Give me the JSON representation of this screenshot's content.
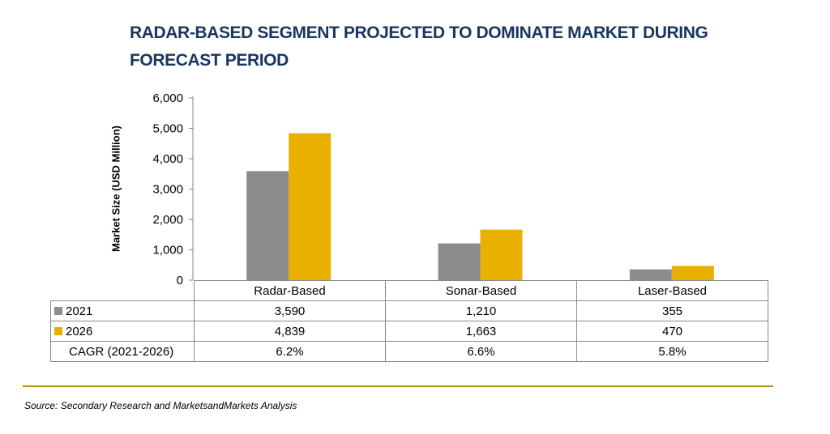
{
  "chart_data": {
    "type": "bar",
    "title": "RADAR-BASED SEGMENT PROJECTED TO DOMINATE MARKET DURING FORECAST PERIOD",
    "ylabel": "Market Size (USD Million)",
    "xlabel": "",
    "ylim": [
      0,
      6000
    ],
    "yticks": [
      0,
      1000,
      2000,
      3000,
      4000,
      5000,
      6000
    ],
    "ytick_labels": [
      "0",
      "1,000",
      "2,000",
      "3,000",
      "4,000",
      "5,000",
      "6,000"
    ],
    "grid": false,
    "categories": [
      "Radar-Based",
      "Sonar-Based",
      "Laser-Based"
    ],
    "series": [
      {
        "name": "2021",
        "values": [
          3590,
          1210,
          355
        ],
        "labels": [
          "3,590",
          "1,210",
          "355"
        ],
        "color": "#8c8c8c"
      },
      {
        "name": "2026",
        "values": [
          4839,
          1663,
          470
        ],
        "labels": [
          "4,839",
          "1,663",
          "470"
        ],
        "color": "#e9b000"
      }
    ],
    "cagr": {
      "label": "CAGR (2021-2026)",
      "values": [
        "6.2%",
        "6.6%",
        "5.8%"
      ]
    }
  },
  "source": "Source: Secondary Research and MarketsandMarkets Analysis",
  "colors": {
    "title": "#17375e",
    "rule": "#b8930c"
  }
}
